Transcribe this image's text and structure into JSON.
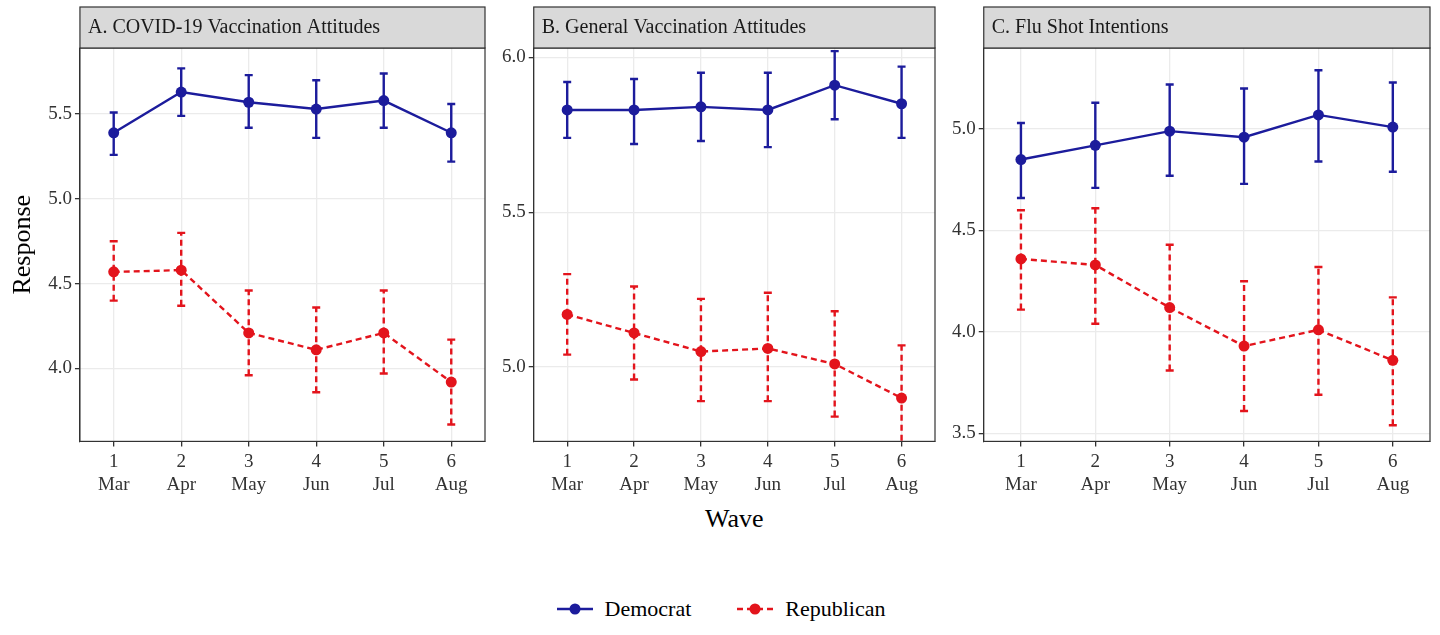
{
  "chart_data": [
    {
      "type": "line",
      "title": "A. COVID-19 Vaccination Attitudes",
      "y_label": "Response",
      "categories": [
        "1\nMar",
        "2\nApr",
        "3\nMay",
        "4\nJun",
        "5\nJul",
        "6\nAug"
      ],
      "ylim": [
        3.57,
        5.89
      ],
      "yticks": [
        {
          "value": 4,
          "label": "4.0"
        },
        {
          "value": 4.5,
          "label": "4.5"
        },
        {
          "value": 5,
          "label": "5.0"
        },
        {
          "value": 5.5,
          "label": "5.5"
        }
      ],
      "grid": true,
      "legend": "bottom",
      "series": [
        {
          "name": "Democrat",
          "color": "#1c1c9c",
          "marker": "circle",
          "line_style": "solid",
          "values": [
            5.39,
            5.63,
            5.57,
            5.53,
            5.58,
            5.39
          ],
          "lower": [
            5.26,
            5.49,
            5.42,
            5.36,
            5.42,
            5.22
          ],
          "upper": [
            5.51,
            5.77,
            5.73,
            5.7,
            5.74,
            5.56
          ]
        },
        {
          "name": "Republican",
          "color": "#e3141c",
          "marker": "circle",
          "line_style": "dashed",
          "values": [
            4.57,
            4.58,
            4.21,
            4.11,
            4.21,
            3.92
          ],
          "lower": [
            4.4,
            4.37,
            3.96,
            3.86,
            3.97,
            3.67
          ],
          "upper": [
            4.75,
            4.8,
            4.46,
            4.36,
            4.46,
            4.17
          ]
        }
      ]
    },
    {
      "type": "line",
      "title": "B. General Vaccination Attitudes",
      "x_label": "Wave",
      "categories": [
        "1\nMar",
        "2\nApr",
        "3\nMay",
        "4\nJun",
        "5\nJul",
        "6\nAug"
      ],
      "ylim": [
        4.76,
        6.03
      ],
      "yticks": [
        {
          "value": 5,
          "label": "5.0"
        },
        {
          "value": 5.5,
          "label": "5.5"
        },
        {
          "value": 6,
          "label": "6.0"
        }
      ],
      "grid": true,
      "series": [
        {
          "name": "Democrat",
          "color": "#1c1c9c",
          "marker": "circle",
          "line_style": "solid",
          "values": [
            5.83,
            5.83,
            5.84,
            5.83,
            5.91,
            5.85
          ],
          "lower": [
            5.74,
            5.72,
            5.73,
            5.71,
            5.8,
            5.74
          ],
          "upper": [
            5.92,
            5.93,
            5.95,
            5.95,
            6.02,
            5.97
          ]
        },
        {
          "name": "Republican",
          "color": "#e3141c",
          "marker": "circle",
          "line_style": "dashed",
          "values": [
            5.17,
            5.11,
            5.05,
            5.06,
            5.01,
            4.9
          ],
          "lower": [
            5.04,
            4.96,
            4.89,
            4.89,
            4.84,
            4.73
          ],
          "upper": [
            5.3,
            5.26,
            5.22,
            5.24,
            5.18,
            5.07
          ]
        }
      ]
    },
    {
      "type": "line",
      "title": "C. Flu Shot Intentions",
      "categories": [
        "1\nMar",
        "2\nApr",
        "3\nMay",
        "4\nJun",
        "5\nJul",
        "6\nAug"
      ],
      "ylim": [
        3.46,
        5.4
      ],
      "yticks": [
        {
          "value": 3.5,
          "label": "3.5"
        },
        {
          "value": 4,
          "label": "4.0"
        },
        {
          "value": 4.5,
          "label": "4.5"
        },
        {
          "value": 5,
          "label": "5.0"
        }
      ],
      "grid": true,
      "series": [
        {
          "name": "Democrat",
          "color": "#1c1c9c",
          "marker": "circle",
          "line_style": "solid",
          "values": [
            4.85,
            4.92,
            4.99,
            4.96,
            5.07,
            5.01
          ],
          "lower": [
            4.66,
            4.71,
            4.77,
            4.73,
            4.84,
            4.79
          ],
          "upper": [
            5.03,
            5.13,
            5.22,
            5.2,
            5.29,
            5.23
          ]
        },
        {
          "name": "Republican",
          "color": "#e3141c",
          "marker": "circle",
          "line_style": "dashed",
          "values": [
            4.36,
            4.33,
            4.12,
            3.93,
            4.01,
            3.86
          ],
          "lower": [
            4.11,
            4.04,
            3.81,
            3.61,
            3.69,
            3.54
          ],
          "upper": [
            4.6,
            4.61,
            4.43,
            4.25,
            4.32,
            4.17
          ]
        }
      ]
    }
  ]
}
